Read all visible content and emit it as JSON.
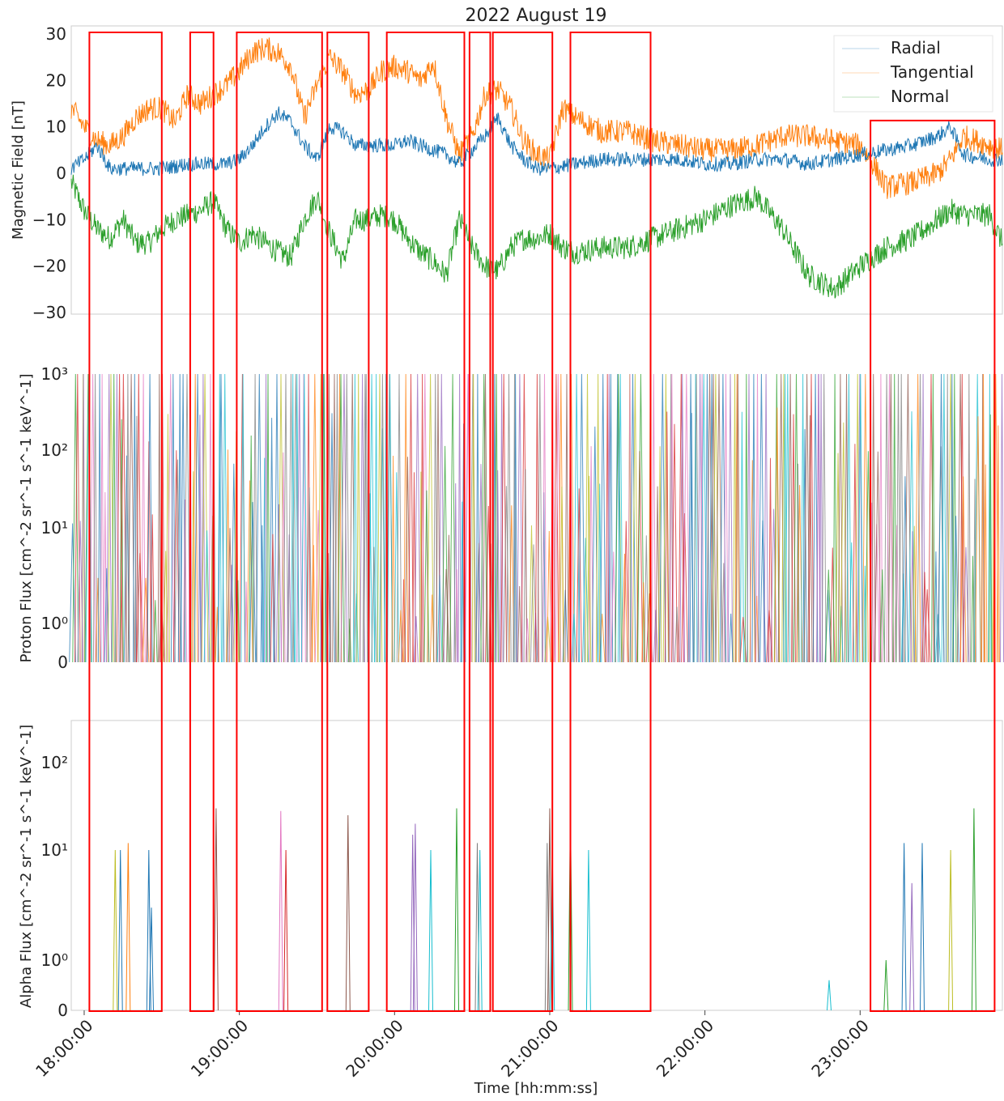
{
  "figure": {
    "title": "2022 August 19"
  },
  "chart_data": [
    {
      "type": "line",
      "panel": "magnetic-field",
      "title": "2022 August 19",
      "xlabel": "",
      "ylabel": "Magnetic Field [nT]",
      "ylim": [
        -30,
        30
      ],
      "yticks": [
        "30",
        "20",
        "10",
        "0",
        "−10",
        "−20",
        "−30"
      ],
      "ytick_values": [
        30,
        20,
        10,
        0,
        -10,
        -20,
        -30
      ],
      "xlim": [
        "17:55:00",
        "23:55:00"
      ],
      "grid": false,
      "legend": "top-right",
      "series": [
        {
          "name": "Radial",
          "color": "#1f77b4",
          "x": [
            "17:55",
            "18:00",
            "18:05",
            "18:10",
            "18:20",
            "18:30",
            "18:40",
            "18:50",
            "18:55",
            "19:00",
            "19:05",
            "19:10",
            "19:15",
            "19:20",
            "19:25",
            "19:30",
            "19:35",
            "19:40",
            "19:45",
            "19:50",
            "19:55",
            "20:00",
            "20:05",
            "20:10",
            "20:15",
            "20:20",
            "20:25",
            "20:30",
            "20:35",
            "20:40",
            "20:45",
            "20:50",
            "20:55",
            "21:00",
            "21:10",
            "21:20",
            "21:30",
            "21:40",
            "21:50",
            "22:00",
            "22:10",
            "22:20",
            "22:30",
            "22:40",
            "22:50",
            "23:00",
            "23:10",
            "23:20",
            "23:30",
            "23:35",
            "23:40",
            "23:50",
            "23:55"
          ],
          "values": [
            1,
            3,
            6,
            1,
            1,
            1,
            2,
            2,
            2,
            3,
            6,
            10,
            13,
            11,
            6,
            3,
            10,
            9,
            6,
            6,
            6,
            6,
            7,
            6,
            5,
            4,
            2,
            5,
            8,
            12,
            6,
            3,
            1,
            1,
            2,
            3,
            3,
            3,
            3,
            2,
            2,
            3,
            3,
            2,
            3,
            4,
            5,
            6,
            8,
            10,
            4,
            3,
            3
          ]
        },
        {
          "name": "Tangential",
          "color": "#ff7f0e",
          "x": [
            "17:55",
            "18:00",
            "18:05",
            "18:10",
            "18:15",
            "18:20",
            "18:25",
            "18:30",
            "18:35",
            "18:40",
            "18:45",
            "18:50",
            "18:55",
            "19:00",
            "19:05",
            "19:10",
            "19:15",
            "19:20",
            "19:25",
            "19:30",
            "19:35",
            "19:40",
            "19:45",
            "19:50",
            "19:55",
            "20:00",
            "20:05",
            "20:10",
            "20:15",
            "20:20",
            "20:25",
            "20:30",
            "20:35",
            "20:40",
            "20:45",
            "20:50",
            "20:55",
            "21:00",
            "21:05",
            "21:10",
            "21:20",
            "21:30",
            "21:40",
            "21:50",
            "22:00",
            "22:10",
            "22:20",
            "22:30",
            "22:40",
            "22:50",
            "23:00",
            "23:05",
            "23:10",
            "23:20",
            "23:30",
            "23:35",
            "23:40",
            "23:50",
            "23:55"
          ],
          "values": [
            14,
            10,
            7,
            6,
            8,
            12,
            14,
            14,
            11,
            17,
            15,
            17,
            19,
            22,
            26,
            27,
            26,
            23,
            12,
            19,
            25,
            22,
            17,
            18,
            22,
            23,
            22,
            20,
            24,
            12,
            4,
            8,
            17,
            18,
            14,
            7,
            4,
            3,
            14,
            12,
            9,
            9,
            7,
            6,
            5,
            5,
            6,
            8,
            8,
            7,
            6,
            2,
            -3,
            -2,
            0,
            3,
            8,
            6,
            5
          ]
        },
        {
          "name": "Normal",
          "color": "#2ca02c",
          "x": [
            "17:55",
            "18:00",
            "18:05",
            "18:10",
            "18:15",
            "18:20",
            "18:25",
            "18:30",
            "18:35",
            "18:40",
            "18:45",
            "18:50",
            "18:55",
            "19:00",
            "19:05",
            "19:10",
            "19:15",
            "19:20",
            "19:25",
            "19:30",
            "19:35",
            "19:40",
            "19:45",
            "19:50",
            "19:55",
            "20:00",
            "20:05",
            "20:10",
            "20:15",
            "20:20",
            "20:25",
            "20:30",
            "20:35",
            "20:40",
            "20:45",
            "20:50",
            "20:55",
            "21:00",
            "21:05",
            "21:10",
            "21:20",
            "21:30",
            "21:40",
            "21:50",
            "22:00",
            "22:10",
            "22:20",
            "22:30",
            "22:40",
            "22:50",
            "23:00",
            "23:05",
            "23:10",
            "23:20",
            "23:30",
            "23:35",
            "23:40",
            "23:50",
            "23:55"
          ],
          "values": [
            -2,
            -8,
            -12,
            -14,
            -10,
            -15,
            -15,
            -12,
            -10,
            -9,
            -8,
            -6,
            -12,
            -15,
            -13,
            -15,
            -17,
            -18,
            -10,
            -5,
            -13,
            -19,
            -10,
            -10,
            -9,
            -10,
            -14,
            -17,
            -19,
            -22,
            -10,
            -16,
            -20,
            -21,
            -16,
            -14,
            -14,
            -13,
            -16,
            -17,
            -16,
            -16,
            -14,
            -12,
            -10,
            -7,
            -5,
            -12,
            -22,
            -25,
            -20,
            -18,
            -16,
            -14,
            -10,
            -8,
            -9,
            -9,
            -15
          ]
        }
      ]
    },
    {
      "type": "line",
      "panel": "proton-flux",
      "xlabel": "",
      "ylabel": "Proton Flux [cm^-2 sr^-1 s^-1 keV^-1]",
      "yscale": "symlog",
      "ylim": [
        0,
        1000
      ],
      "yticks": [
        "10³",
        "10²",
        "10¹",
        "10⁰",
        "0"
      ],
      "ytick_values": [
        1000,
        100,
        10,
        1,
        0
      ],
      "xlim": [
        "17:55:00",
        "23:55:00"
      ],
      "grid": false,
      "spike_count": 380,
      "colors": [
        "#1f77b4",
        "#ff7f0e",
        "#2ca02c",
        "#d62728",
        "#9467bd",
        "#8c564b",
        "#e377c2",
        "#7f7f7f",
        "#bcbd22",
        "#17becf"
      ]
    },
    {
      "type": "line",
      "panel": "alpha-flux",
      "xlabel": "Time [hh:mm:ss]",
      "ylabel": "Alpha Flux [cm^-2 sr^-1 s^-1 keV^-1]",
      "yscale": "symlog",
      "ylim": [
        0,
        300
      ],
      "yticks": [
        "10²",
        "10¹",
        "10⁰",
        "0"
      ],
      "ytick_values": [
        100,
        10,
        1,
        0
      ],
      "xticks": [
        "18:00:00",
        "19:00:00",
        "20:00:00",
        "21:00:00",
        "22:00:00",
        "23:00:00"
      ],
      "xlim": [
        "17:55:00",
        "23:55:00"
      ],
      "grid": false,
      "spikes": [
        {
          "t": "18:12",
          "v": 10,
          "color": "#bcbd22"
        },
        {
          "t": "18:14",
          "v": 10,
          "color": "#1f77b4"
        },
        {
          "t": "18:17",
          "v": 12,
          "color": "#ff7f0e"
        },
        {
          "t": "18:25",
          "v": 10,
          "color": "#1f77b4"
        },
        {
          "t": "18:26",
          "v": 3,
          "color": "#1f77b4"
        },
        {
          "t": "18:51",
          "v": 30,
          "color": "#8c564b"
        },
        {
          "t": "19:16",
          "v": 28,
          "color": "#e377c2"
        },
        {
          "t": "19:18",
          "v": 10,
          "color": "#d62728"
        },
        {
          "t": "19:42",
          "v": 25,
          "color": "#8c564b"
        },
        {
          "t": "20:07",
          "v": 15,
          "color": "#9467bd"
        },
        {
          "t": "20:08",
          "v": 20,
          "color": "#9467bd"
        },
        {
          "t": "20:14",
          "v": 10,
          "color": "#17becf"
        },
        {
          "t": "20:24",
          "v": 30,
          "color": "#2ca02c"
        },
        {
          "t": "20:32",
          "v": 12,
          "color": "#7f7f7f"
        },
        {
          "t": "20:33",
          "v": 10,
          "color": "#17becf"
        },
        {
          "t": "20:59",
          "v": 12,
          "color": "#7f7f7f"
        },
        {
          "t": "21:00",
          "v": 30,
          "color": "#8c564b"
        },
        {
          "t": "21:01",
          "v": 10,
          "color": "#17becf"
        },
        {
          "t": "21:08",
          "v": 30,
          "color": "#2ca02c"
        },
        {
          "t": "21:15",
          "v": 10,
          "color": "#17becf"
        },
        {
          "t": "22:48",
          "v": 0.6,
          "color": "#17becf"
        },
        {
          "t": "23:10",
          "v": 1,
          "color": "#2ca02c"
        },
        {
          "t": "23:17",
          "v": 12,
          "color": "#1f77b4"
        },
        {
          "t": "23:20",
          "v": 5,
          "color": "#9467bd"
        },
        {
          "t": "23:24",
          "v": 12,
          "color": "#1f77b4"
        },
        {
          "t": "23:35",
          "v": 10,
          "color": "#bcbd22"
        },
        {
          "t": "23:44",
          "v": 30,
          "color": "#2ca02c"
        }
      ]
    }
  ],
  "highlight_boxes": {
    "color": "#ff0000",
    "intervals": [
      {
        "start": "18:02",
        "end": "18:30",
        "top_nT": 30
      },
      {
        "start": "18:41",
        "end": "18:50",
        "top_nT": 30
      },
      {
        "start": "18:59",
        "end": "19:32",
        "top_nT": 30
      },
      {
        "start": "19:34",
        "end": "19:50",
        "top_nT": 30
      },
      {
        "start": "19:57",
        "end": "20:27",
        "top_nT": 30
      },
      {
        "start": "20:29",
        "end": "20:37",
        "top_nT": 30
      },
      {
        "start": "20:38",
        "end": "21:01",
        "top_nT": 30
      },
      {
        "start": "21:08",
        "end": "21:39",
        "top_nT": 30
      },
      {
        "start": "23:04",
        "end": "23:52",
        "top_nT": 11
      }
    ]
  },
  "legend": {
    "items": [
      {
        "label": "Radial",
        "color": "#1f77b4"
      },
      {
        "label": "Tangential",
        "color": "#ff7f0e"
      },
      {
        "label": "Normal",
        "color": "#2ca02c"
      }
    ]
  },
  "axes": {
    "mag_ylabel": "Magnetic Field [nT]",
    "proton_ylabel": "Proton Flux [cm^-2 sr^-1 s^-1 keV^-1]",
    "alpha_ylabel": "Alpha Flux [cm^-2 sr^-1 s^-1 keV^-1]",
    "xlabel": "Time [hh:mm:ss]"
  }
}
